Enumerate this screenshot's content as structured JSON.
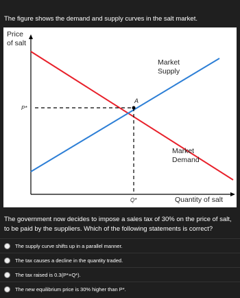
{
  "intro": "The figure shows the demand and supply curves in the salt market.",
  "figure": {
    "y_axis_label": [
      "Price",
      "of salt"
    ],
    "price_label": "P*",
    "point_label": "A",
    "quantity_label": "Q*",
    "supply_label": [
      "Market",
      "Supply"
    ],
    "demand_label": [
      "Market",
      "Demand"
    ],
    "x_axis_label": "Quantity of salt"
  },
  "question": "The government now decides to impose a sales tax of 30% on the price of salt, to be paid by the suppliers. Which of the following statements is correct?",
  "options": [
    "The supply curve shifts up in a parallel manner.",
    "The tax causes a decline in the quantity traded.",
    "The tax raised is 0.3(P*×Q*).",
    "The new equilibrium price is 30% higher than P*."
  ]
}
